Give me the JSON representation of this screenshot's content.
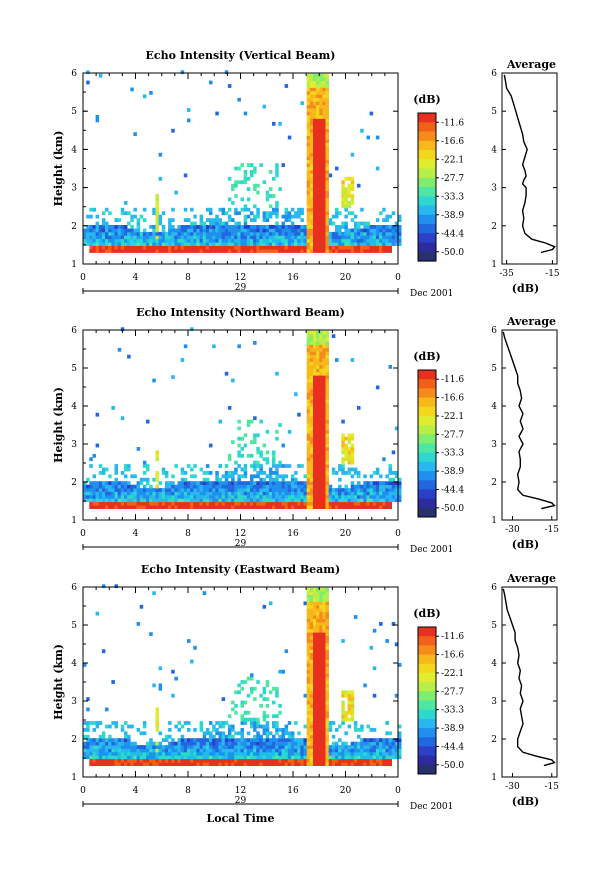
{
  "colorbar": {
    "unit": "(dB)",
    "labels": [
      "-11.6",
      "-16.6",
      "-22.1",
      "-27.7",
      "-33.3",
      "-38.9",
      "-44.4",
      "-50.0"
    ],
    "colors": [
      "#e83020",
      "#f0601a",
      "#f48c1c",
      "#f8b81c",
      "#f2d81c",
      "#e0ec30",
      "#b8ee48",
      "#80ec70",
      "#4ee6a0",
      "#2ed8d0",
      "#28b8ee",
      "#2090ee",
      "#2266e0",
      "#2a40c8",
      "#2c2ca0",
      "#283070"
    ]
  },
  "shared_axes": {
    "date_label": "Dec 2001",
    "day_label": "29",
    "xlabel": "Local Time",
    "ylabel": "Height (km)",
    "avg_xlabel": "(dB)"
  },
  "chart_data": [
    {
      "type": "heatmap",
      "title": "Echo Intensity (Vertical Beam)",
      "xlabel": "",
      "ylabel": "Height (km)",
      "x_ticks": [
        "0",
        "4",
        "8",
        "12",
        "16",
        "20",
        "0"
      ],
      "y_ticks": [
        "1",
        "2",
        "3",
        "4",
        "5",
        "6"
      ],
      "xlim": [
        0,
        24
      ],
      "ylim": [
        1,
        6
      ],
      "avg_profile": {
        "title": "Average",
        "xlabel": "(dB)",
        "x_ticks": [
          "-35",
          "-15"
        ],
        "xlim": [
          -37,
          -13
        ],
        "y_ticks": [
          "1",
          "2",
          "3",
          "4",
          "5",
          "6"
        ],
        "height": [
          1.3,
          1.38,
          1.45,
          1.55,
          1.65,
          1.8,
          2.0,
          2.2,
          2.4,
          2.6,
          2.8,
          3.0,
          3.1,
          3.2,
          3.3,
          3.45,
          3.6,
          3.8,
          4.0,
          4.2,
          4.4,
          4.6,
          4.8,
          5.0,
          5.2,
          5.4,
          5.6,
          5.8,
          5.95
        ],
        "db": [
          -20,
          -15,
          -14,
          -18,
          -24,
          -27,
          -28,
          -27.5,
          -28,
          -27,
          -26.5,
          -26.5,
          -28,
          -27.5,
          -26.5,
          -27,
          -28,
          -27,
          -26,
          -27.5,
          -28,
          -29,
          -30,
          -31,
          -32,
          -33,
          -35,
          -35.5,
          -36
        ]
      }
    },
    {
      "type": "heatmap",
      "title": "Echo Intensity (Northward Beam)",
      "xlabel": "",
      "ylabel": "Height (km)",
      "x_ticks": [
        "0",
        "4",
        "8",
        "12",
        "16",
        "20",
        "0"
      ],
      "y_ticks": [
        "1",
        "2",
        "3",
        "4",
        "5",
        "6"
      ],
      "xlim": [
        0,
        24
      ],
      "ylim": [
        1,
        6
      ],
      "avg_profile": {
        "title": "Average",
        "xlabel": "(dB)",
        "x_ticks": [
          "-30",
          "-15"
        ],
        "xlim": [
          -34,
          -13
        ],
        "y_ticks": [
          "1",
          "2",
          "3",
          "4",
          "5",
          "6"
        ],
        "height": [
          1.3,
          1.38,
          1.45,
          1.55,
          1.65,
          1.8,
          2.0,
          2.2,
          2.4,
          2.6,
          2.8,
          3.0,
          3.2,
          3.4,
          3.6,
          3.8,
          4.0,
          4.2,
          4.4,
          4.6,
          4.8,
          5.0,
          5.2,
          5.4,
          5.6,
          5.8,
          5.95
        ],
        "db": [
          -19,
          -14,
          -15,
          -20,
          -26,
          -28,
          -27.5,
          -28,
          -27,
          -27,
          -27.5,
          -26,
          -27.5,
          -26,
          -27,
          -26,
          -27.5,
          -26.5,
          -27,
          -28,
          -28,
          -29,
          -30,
          -31,
          -32,
          -33,
          -33.5
        ]
      }
    },
    {
      "type": "heatmap",
      "title": "Echo Intensity (Eastward Beam)",
      "xlabel": "Local Time",
      "ylabel": "Height (km)",
      "x_ticks": [
        "0",
        "4",
        "8",
        "12",
        "16",
        "20",
        "0"
      ],
      "y_ticks": [
        "1",
        "2",
        "3",
        "4",
        "5",
        "6"
      ],
      "xlim": [
        0,
        24
      ],
      "ylim": [
        1,
        6
      ],
      "avg_profile": {
        "title": "Average",
        "xlabel": "(dB)",
        "x_ticks": [
          "-30",
          "-15"
        ],
        "xlim": [
          -34,
          -13
        ],
        "y_ticks": [
          "1",
          "2",
          "3",
          "4",
          "5",
          "6"
        ],
        "height": [
          1.3,
          1.38,
          1.45,
          1.55,
          1.65,
          1.8,
          2.0,
          2.2,
          2.4,
          2.6,
          2.8,
          3.0,
          3.2,
          3.4,
          3.6,
          3.8,
          4.0,
          4.2,
          4.4,
          4.6,
          4.8,
          5.0,
          5.2,
          5.4,
          5.6,
          5.8,
          5.95
        ],
        "db": [
          -18,
          -14,
          -15,
          -21,
          -26,
          -28,
          -28,
          -27,
          -26,
          -26.5,
          -27,
          -26,
          -27,
          -26.5,
          -27.5,
          -27,
          -28,
          -27.5,
          -28,
          -29,
          -29,
          -30,
          -31,
          -32,
          -32.5,
          -33,
          -33.5
        ]
      }
    }
  ]
}
